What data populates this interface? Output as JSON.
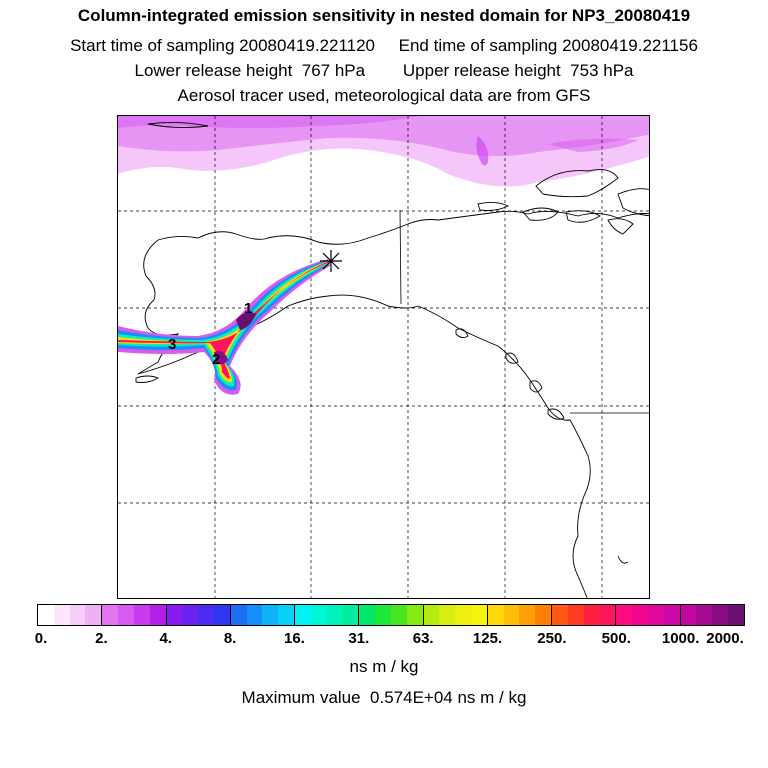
{
  "header": {
    "title": "Column-integrated emission sensitivity in nested domain for NP3_20080419",
    "line2": "Start time of sampling 20080419.221120     End time of sampling 20080419.221156",
    "line3": "Lower release height  767 hPa        Upper release height  753 hPa",
    "line4": "Aerosol tracer used, meteorological data are from GFS"
  },
  "map": {
    "release_marker": "asterisk-icon",
    "age_labels": [
      "1",
      "2",
      "3"
    ],
    "colors": {
      "coast": "#000000",
      "grid": "#000000"
    }
  },
  "colorbar": {
    "tick_labels": [
      "0.",
      "2.",
      "4.",
      "8.",
      "16.",
      "31.",
      "63.",
      "125.",
      "250.",
      "500.",
      "1000.",
      "2000."
    ],
    "colors": [
      "#ffffff",
      "#fde6fd",
      "#f8ccfa",
      "#f0b0f4",
      "#e176ef",
      "#d85aee",
      "#c83cee",
      "#b41fe8",
      "#8a1af0",
      "#6a22f0",
      "#4c2cf2",
      "#2e36f2",
      "#1f6cf5",
      "#1690f8",
      "#10b2f8",
      "#0bd0f5",
      "#00f2f2",
      "#00f5d6",
      "#00f2bc",
      "#00ee9e",
      "#00e86e",
      "#1de83a",
      "#48e520",
      "#86ea14",
      "#b4ec12",
      "#d6ee10",
      "#eeee10",
      "#f6f210",
      "#ffd808",
      "#ffbe08",
      "#ffa006",
      "#ff7e06",
      "#ff5a14",
      "#ff3a24",
      "#ff2040",
      "#ff1460",
      "#ff0a80",
      "#f2088e",
      "#e0089a",
      "#cc08a6",
      "#c008a0",
      "#a40a92",
      "#880c84",
      "#6a0e70"
    ],
    "unit": "ns m / kg"
  },
  "footer": {
    "max_value": "Maximum value  0.574E+04 ns m / kg"
  }
}
